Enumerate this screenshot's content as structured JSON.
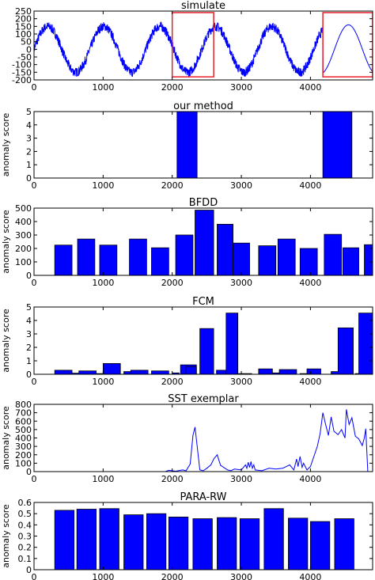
{
  "colors": {
    "series": "#0000ff",
    "highlight": "#e8202a",
    "axis": "#000000",
    "edge": "#000000"
  },
  "chart_data": [
    {
      "type": "line",
      "title": "simulate",
      "ylabel": "",
      "xlim": [
        0,
        4900
      ],
      "ylim": [
        -200,
        250
      ],
      "xticks": [
        0,
        1000,
        2000,
        3000,
        4000
      ],
      "yticks": [
        -200,
        -150,
        -100,
        -50,
        0,
        50,
        100,
        150,
        200,
        250
      ],
      "series": [
        {
          "period": 810,
          "amplitude": 150,
          "peak_x": 200,
          "noise_amplitude": 30,
          "noisy_until_x": 4180,
          "smooth_peak_x": 4550,
          "smooth_amplitude": 160
        }
      ],
      "highlight_boxes": [
        {
          "x_range": [
            2000,
            2600
          ],
          "y_range": [
            -180,
            240
          ]
        },
        {
          "x_range": [
            4180,
            4900
          ],
          "y_range": [
            -180,
            240
          ]
        }
      ]
    },
    {
      "type": "bar",
      "title": "our method",
      "ylabel": "anomaly score",
      "xlim": [
        0,
        4900
      ],
      "ylim": [
        0,
        5
      ],
      "xticks": [
        0,
        1000,
        2000,
        3000,
        4000
      ],
      "yticks": [
        0,
        1,
        2,
        3,
        4,
        5
      ],
      "bars": [
        {
          "x0": 2070,
          "x1": 2360,
          "value": 5
        },
        {
          "x0": 4180,
          "x1": 4600,
          "value": 5
        }
      ]
    },
    {
      "type": "bar",
      "title": "BFDD",
      "ylabel": "anomaly score",
      "xlim": [
        0,
        4900
      ],
      "ylim": [
        0,
        500
      ],
      "xticks": [
        0,
        1000,
        2000,
        3000,
        4000
      ],
      "yticks": [
        0,
        100,
        200,
        300,
        400,
        500
      ],
      "bars": [
        {
          "x0": 300,
          "x1": 550,
          "value": 225
        },
        {
          "x0": 630,
          "x1": 880,
          "value": 270
        },
        {
          "x0": 950,
          "x1": 1200,
          "value": 225
        },
        {
          "x0": 1380,
          "x1": 1630,
          "value": 270
        },
        {
          "x0": 1700,
          "x1": 1950,
          "value": 205
        },
        {
          "x0": 2050,
          "x1": 2300,
          "value": 300
        },
        {
          "x0": 2330,
          "x1": 2600,
          "value": 485
        },
        {
          "x0": 2650,
          "x1": 2880,
          "value": 380
        },
        {
          "x0": 2880,
          "x1": 3120,
          "value": 240
        },
        {
          "x0": 3250,
          "x1": 3500,
          "value": 220
        },
        {
          "x0": 3530,
          "x1": 3780,
          "value": 270
        },
        {
          "x0": 3850,
          "x1": 4100,
          "value": 200
        },
        {
          "x0": 4200,
          "x1": 4450,
          "value": 305
        },
        {
          "x0": 4470,
          "x1": 4700,
          "value": 205
        },
        {
          "x0": 4780,
          "x1": 4900,
          "value": 228
        }
      ]
    },
    {
      "type": "bar",
      "title": "FCM",
      "ylabel": "anomaly score",
      "xlim": [
        0,
        4900
      ],
      "ylim": [
        0,
        5
      ],
      "xticks": [
        0,
        1000,
        2000,
        3000,
        4000
      ],
      "yticks": [
        0,
        1,
        2,
        3,
        4,
        5
      ],
      "bars": [
        {
          "x0": 300,
          "x1": 550,
          "value": 0.3
        },
        {
          "x0": 550,
          "x1": 650,
          "value": 0.08
        },
        {
          "x0": 650,
          "x1": 900,
          "value": 0.25
        },
        {
          "x0": 900,
          "x1": 1000,
          "value": 0.05
        },
        {
          "x0": 1000,
          "x1": 1250,
          "value": 0.8
        },
        {
          "x0": 1300,
          "x1": 1400,
          "value": 0.2
        },
        {
          "x0": 1400,
          "x1": 1650,
          "value": 0.3
        },
        {
          "x0": 1700,
          "x1": 1950,
          "value": 0.25
        },
        {
          "x0": 2000,
          "x1": 2100,
          "value": 0.1
        },
        {
          "x0": 2120,
          "x1": 2350,
          "value": 0.7
        },
        {
          "x0": 2200,
          "x1": 2350,
          "value": 0.55
        },
        {
          "x0": 2400,
          "x1": 2600,
          "value": 3.4
        },
        {
          "x0": 2640,
          "x1": 2780,
          "value": 0.3
        },
        {
          "x0": 2780,
          "x1": 2950,
          "value": 4.55
        },
        {
          "x0": 2950,
          "x1": 3150,
          "value": 0.05
        },
        {
          "x0": 3250,
          "x1": 3450,
          "value": 0.4
        },
        {
          "x0": 3450,
          "x1": 3550,
          "value": 0.1
        },
        {
          "x0": 3550,
          "x1": 3800,
          "value": 0.35
        },
        {
          "x0": 3850,
          "x1": 3950,
          "value": 0.05
        },
        {
          "x0": 3950,
          "x1": 4150,
          "value": 0.4
        },
        {
          "x0": 4300,
          "x1": 4400,
          "value": 0.2
        },
        {
          "x0": 4400,
          "x1": 4620,
          "value": 3.45
        },
        {
          "x0": 4650,
          "x1": 4700,
          "value": 0.05
        },
        {
          "x0": 4700,
          "x1": 4900,
          "value": 4.55
        }
      ]
    },
    {
      "type": "line",
      "title": "SST exemplar",
      "ylabel": "anomaly score",
      "xlim": [
        0,
        4900
      ],
      "ylim": [
        0,
        800
      ],
      "xticks": [
        0,
        1000,
        2000,
        3000,
        4000
      ],
      "yticks": [
        0,
        100,
        200,
        300,
        400,
        500,
        600,
        700,
        800
      ],
      "series": [
        {
          "x": [
            0,
            1900,
            1950,
            2050,
            2150,
            2200,
            2260,
            2300,
            2330,
            2400,
            2450,
            2500,
            2560,
            2600,
            2650,
            2700,
            2800,
            2850,
            2900,
            3000,
            3060,
            3080,
            3100,
            3120,
            3140,
            3160,
            3180,
            3200,
            3300,
            3400,
            3500,
            3600,
            3700,
            3760,
            3800,
            3820,
            3850,
            3880,
            3900,
            3950,
            4000,
            4100,
            4140,
            4180,
            4220,
            4260,
            4300,
            4340,
            4400,
            4450,
            4500,
            4520,
            4560,
            4600,
            4650,
            4700,
            4750,
            4780,
            4800,
            4830,
            4900
          ],
          "y": [
            0,
            0,
            15,
            5,
            20,
            10,
            90,
            430,
            530,
            20,
            10,
            40,
            80,
            150,
            200,
            75,
            20,
            10,
            30,
            20,
            80,
            40,
            110,
            50,
            120,
            40,
            80,
            20,
            10,
            40,
            30,
            40,
            80,
            20,
            150,
            60,
            180,
            50,
            100,
            20,
            60,
            300,
            450,
            700,
            560,
            430,
            650,
            480,
            440,
            500,
            400,
            740,
            560,
            640,
            420,
            390,
            310,
            400,
            510,
            0,
            0
          ]
        }
      ]
    },
    {
      "type": "bar",
      "title": "PARA-RW",
      "ylabel": "anomaly score",
      "xlim": [
        0,
        4900
      ],
      "ylim": [
        0,
        0.6
      ],
      "xticks": [
        0,
        1000,
        2000,
        3000,
        4000
      ],
      "yticks": [
        0,
        0.1,
        0.2,
        0.3,
        0.4,
        0.5,
        0.6
      ],
      "bars": [
        {
          "x0": 300,
          "x1": 580,
          "value": 0.53
        },
        {
          "x0": 620,
          "x1": 900,
          "value": 0.54
        },
        {
          "x0": 950,
          "x1": 1230,
          "value": 0.545
        },
        {
          "x0": 1300,
          "x1": 1580,
          "value": 0.49
        },
        {
          "x0": 1630,
          "x1": 1910,
          "value": 0.5
        },
        {
          "x0": 1950,
          "x1": 2230,
          "value": 0.47
        },
        {
          "x0": 2300,
          "x1": 2580,
          "value": 0.455
        },
        {
          "x0": 2650,
          "x1": 2930,
          "value": 0.465
        },
        {
          "x0": 2980,
          "x1": 3260,
          "value": 0.455
        },
        {
          "x0": 3330,
          "x1": 3610,
          "value": 0.545
        },
        {
          "x0": 3680,
          "x1": 3960,
          "value": 0.46
        },
        {
          "x0": 4000,
          "x1": 4280,
          "value": 0.43
        },
        {
          "x0": 4350,
          "x1": 4630,
          "value": 0.455
        }
      ]
    }
  ]
}
